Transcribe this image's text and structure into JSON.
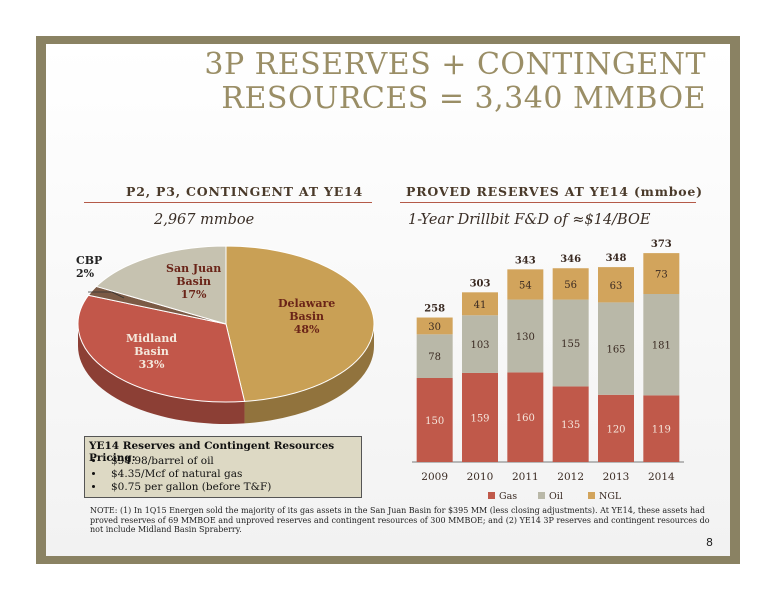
{
  "slide": {
    "title_line1": "3P RESERVES + CONTINGENT",
    "title_line2": "RESOURCES = 3,340 MMBOE",
    "page_number": "8",
    "note": "NOTE: (1) In 1Q15 Energen sold the majority of its gas assets in the San Juan Basin for $395 MM (less closing adjustments). At YE14, these assets had proved reserves of 69 MMBOE and unproved reserves and contingent resources of 300 MMBOE; and (2) YE14 3P reserves and contingent resources do not include Midland Basin Spraberry."
  },
  "left_section": {
    "heading": "P2, P3, CONTINGENT AT YE14",
    "subheading": "2,967 mmboe"
  },
  "right_section": {
    "heading": "PROVED RESERVES AT YE14 (mmboe)",
    "subheading": "1-Year Drillbit F&D of ≈$14/BOE"
  },
  "pricing": {
    "heading": "YE14 Reserves and Contingent Resources Pricing:",
    "items": [
      "$94.98/barrel of oil",
      "$4.35/Mcf of natural gas",
      "$0.75 per gallon (before T&F)"
    ]
  },
  "chart_data": [
    {
      "type": "pie",
      "slices": [
        {
          "label_line1": "Delaware",
          "label_line2": "Basin",
          "label_pct": "48%",
          "value": 48,
          "color": "#c9a055"
        },
        {
          "label_line1": "Midland",
          "label_line2": "Basin",
          "label_pct": "33%",
          "value": 33,
          "color": "#c2574a"
        },
        {
          "label_line1": "CBP",
          "label_line2": "",
          "label_pct": "2%",
          "value": 2,
          "color": "#7b5a45"
        },
        {
          "label_line1": "San Juan",
          "label_line2": "Basin",
          "label_pct": "17%",
          "value": 17,
          "color": "#c6c2b0"
        }
      ]
    },
    {
      "type": "bar",
      "stacked": true,
      "categories": [
        "2009",
        "2010",
        "2011",
        "2012",
        "2013",
        "2014"
      ],
      "series": [
        {
          "name": "Gas",
          "values": [
            150,
            159,
            160,
            135,
            120,
            119
          ],
          "color": "#c0594a"
        },
        {
          "name": "Oil",
          "values": [
            78,
            103,
            130,
            155,
            165,
            181
          ],
          "color": "#b9b8a8"
        },
        {
          "name": "NGL",
          "values": [
            30,
            41,
            54,
            56,
            63,
            73
          ],
          "color": "#d2a45c"
        }
      ],
      "totals": [
        258,
        303,
        343,
        346,
        348,
        373
      ],
      "legend_position": "bottom",
      "ylim": [
        0,
        400
      ]
    }
  ]
}
